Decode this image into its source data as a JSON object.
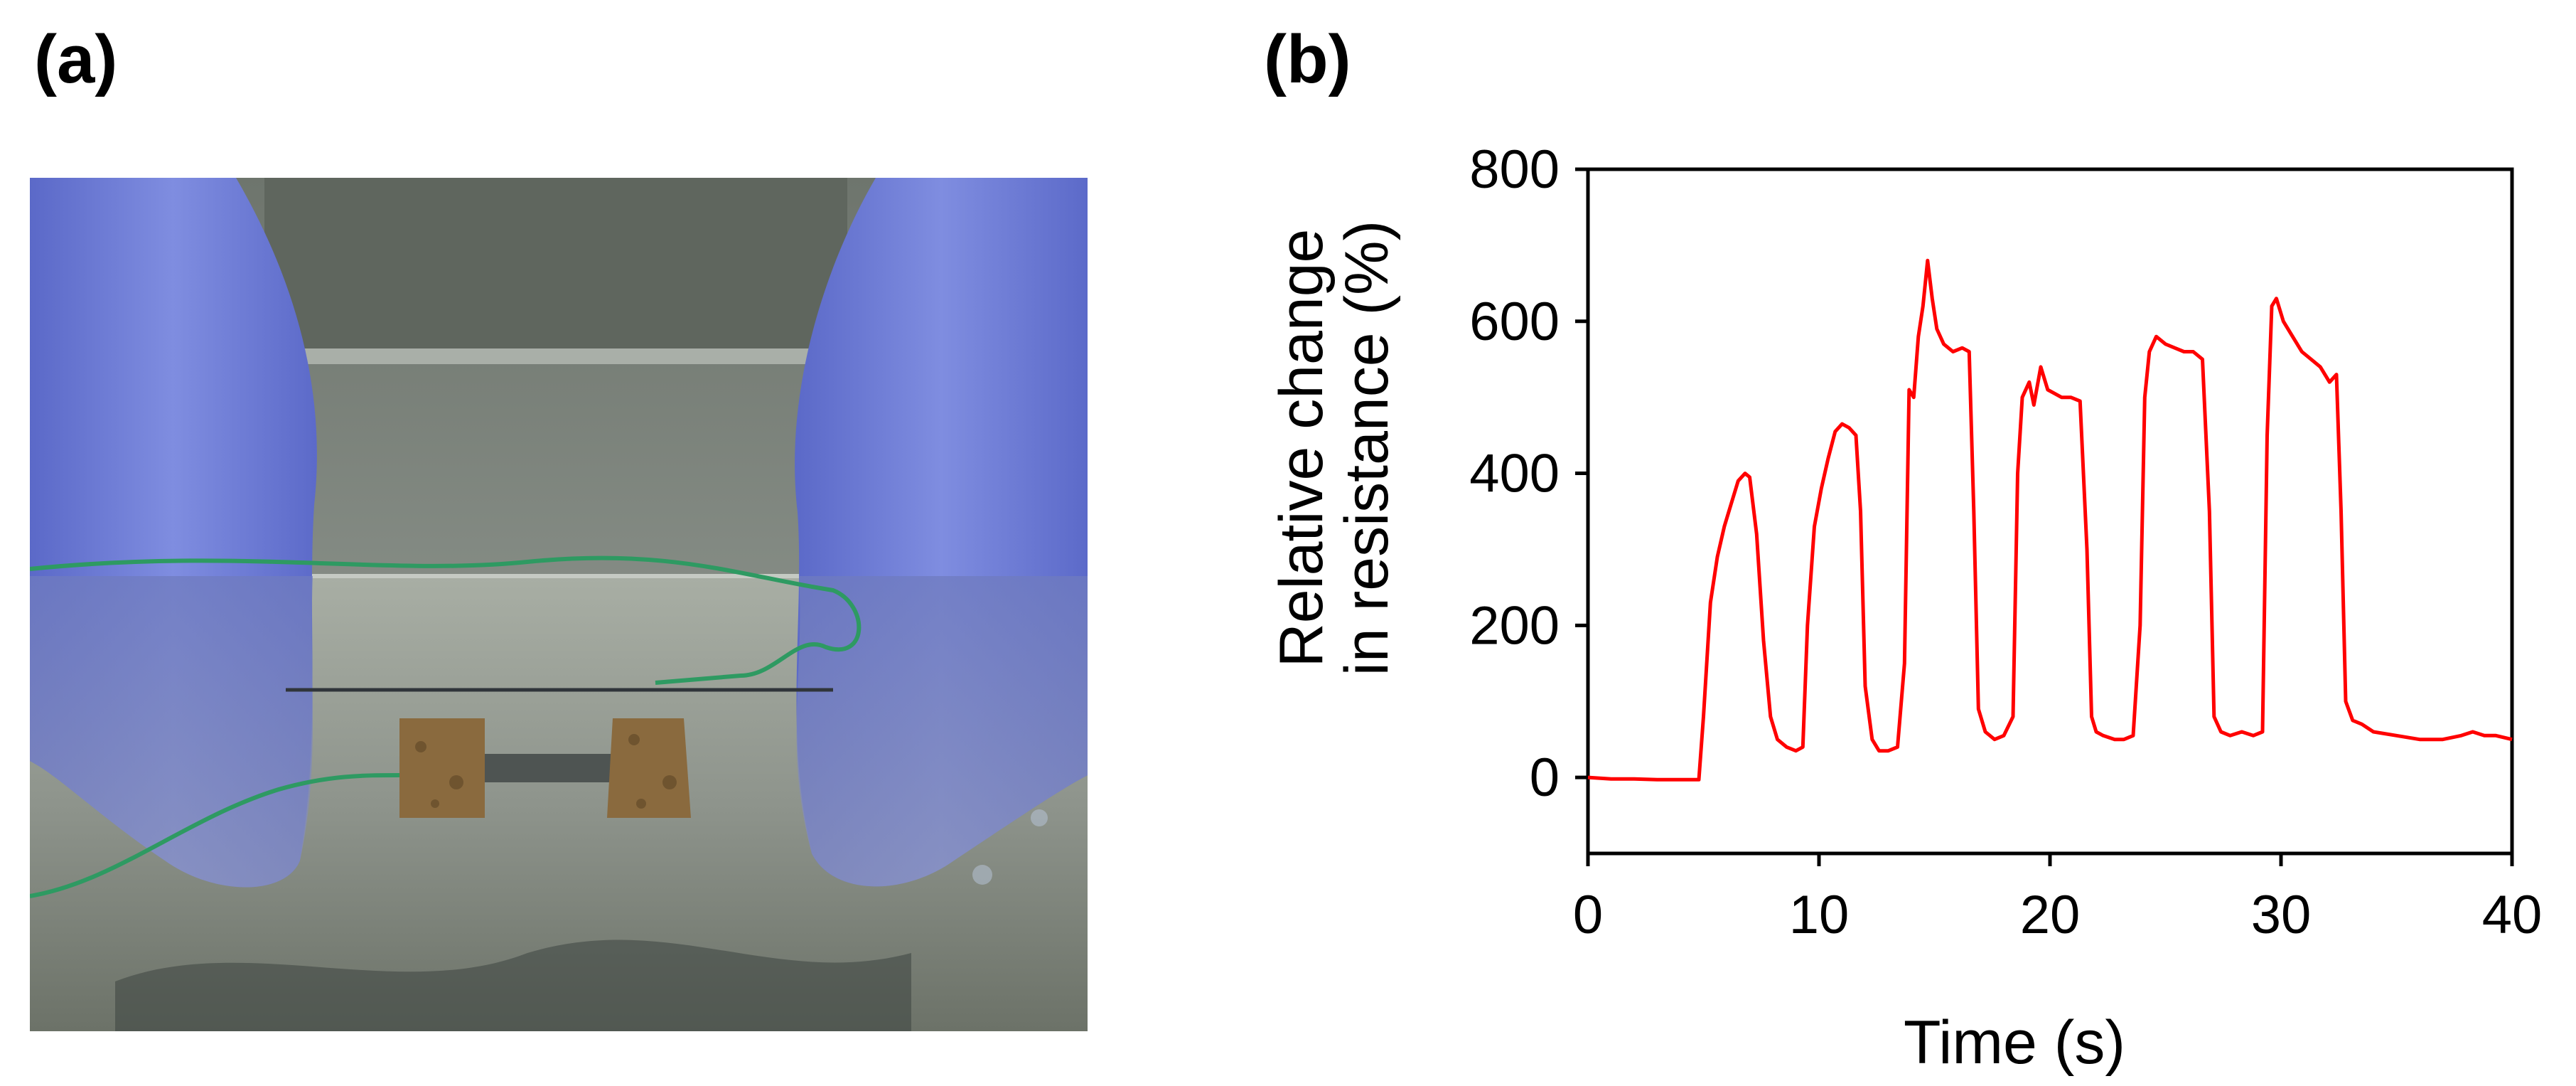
{
  "panels": {
    "a": {
      "label": "(a)"
    },
    "b": {
      "label": "(b)"
    }
  },
  "colors": {
    "series": "#ff0000",
    "glove": "#6f7fd8",
    "water": "#8a948a",
    "wire": "#2e9a62",
    "electrode": "#8a6a3e"
  },
  "chart_data": {
    "type": "line",
    "title": "",
    "xlabel": "Time (s)",
    "ylabel_lines": [
      "Relative change",
      "in resistance (%)"
    ],
    "xlim": [
      0,
      40
    ],
    "ylim": [
      -100,
      800
    ],
    "xticks": [
      0,
      10,
      20,
      30,
      40
    ],
    "yticks": [
      0,
      200,
      400,
      600,
      800
    ],
    "grid": false,
    "legend": "none",
    "series": [
      {
        "color": "#ff0000",
        "x": [
          0,
          1,
          2,
          3,
          4,
          4.8,
          5.0,
          5.3,
          5.6,
          5.9,
          6.2,
          6.5,
          6.8,
          7.0,
          7.3,
          7.6,
          7.9,
          8.2,
          8.6,
          9.0,
          9.3,
          9.5,
          9.8,
          10.1,
          10.4,
          10.7,
          11.0,
          11.3,
          11.6,
          11.8,
          12.0,
          12.3,
          12.6,
          13.0,
          13.4,
          13.7,
          13.9,
          14.1,
          14.3,
          14.5,
          14.7,
          14.9,
          15.1,
          15.4,
          15.8,
          16.2,
          16.5,
          16.7,
          16.9,
          17.2,
          17.6,
          18.0,
          18.4,
          18.6,
          18.8,
          19.1,
          19.3,
          19.6,
          19.9,
          20.2,
          20.5,
          20.9,
          21.3,
          21.6,
          21.8,
          22.0,
          22.3,
          22.8,
          23.2,
          23.6,
          23.9,
          24.1,
          24.3,
          24.6,
          25.0,
          25.4,
          25.8,
          26.2,
          26.6,
          26.9,
          27.1,
          27.4,
          27.8,
          28.3,
          28.8,
          29.2,
          29.4,
          29.6,
          29.8,
          30.1,
          30.5,
          30.9,
          31.3,
          31.7,
          32.1,
          32.4,
          32.6,
          32.8,
          33.1,
          33.5,
          34.0,
          35.0,
          36.0,
          37.0,
          37.8,
          38.3,
          38.8,
          39.3,
          40.0
        ],
        "y": [
          0,
          -2,
          -2,
          -3,
          -3,
          -3,
          80,
          230,
          290,
          330,
          360,
          390,
          400,
          395,
          320,
          180,
          80,
          50,
          40,
          35,
          40,
          200,
          330,
          380,
          420,
          455,
          465,
          460,
          450,
          350,
          120,
          50,
          35,
          35,
          40,
          150,
          510,
          500,
          580,
          620,
          680,
          630,
          590,
          570,
          560,
          565,
          560,
          350,
          90,
          60,
          50,
          55,
          80,
          400,
          500,
          520,
          490,
          540,
          510,
          505,
          500,
          500,
          495,
          300,
          80,
          60,
          55,
          50,
          50,
          55,
          200,
          500,
          560,
          580,
          570,
          565,
          560,
          560,
          550,
          350,
          80,
          60,
          55,
          60,
          55,
          60,
          450,
          620,
          630,
          600,
          580,
          560,
          550,
          540,
          520,
          530,
          350,
          100,
          75,
          70,
          60,
          55,
          50,
          50,
          55,
          60,
          55,
          55,
          50
        ]
      }
    ]
  }
}
